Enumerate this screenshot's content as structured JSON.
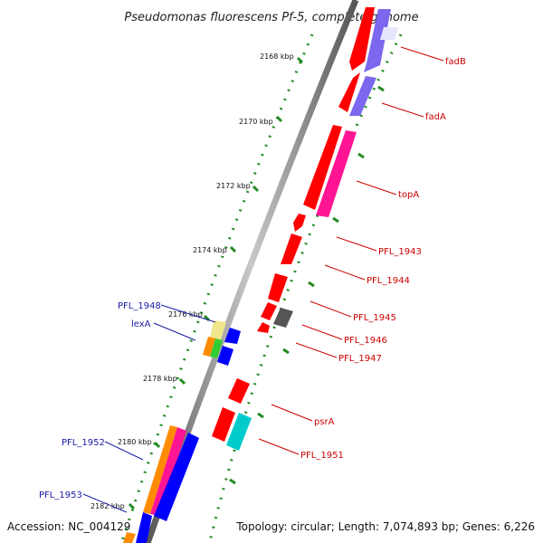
{
  "title": "Pseudomonas fluorescens Pf-5, complete genome",
  "kbp_ticks": [
    "2168 kbp",
    "2170 kbp",
    "2172 kbp",
    "2174 kbp",
    "2176 kbp",
    "2178 kbp",
    "2180 kbp",
    "2182 kbp"
  ],
  "gene_labels_right": [
    "fadB",
    "fadA",
    "topA",
    "PFL_1943",
    "PFL_1944",
    "PFL_1945",
    "PFL_1946",
    "PFL_1947",
    "psrA",
    "PFL_1951"
  ],
  "gene_labels_left": [
    "PFL_1948",
    "lexA",
    "PFL_1952",
    "PFL_1953"
  ],
  "footer": {
    "accession": "Accession: NC_004129",
    "summary": "Topology: circular; Length: 7,074,893 bp; Genes: 6,226"
  },
  "colors": {
    "cds": "#ff0000",
    "backbone": "#888888",
    "tick_dots": "#228b22",
    "label_right": "#cc0000",
    "label_left": "#1a1aa6",
    "blue": "#0000ff",
    "purple": "#7b68ee",
    "pink": "#ff1493",
    "orange": "#ff8c00",
    "green": "#32cd32",
    "khaki": "#f0e68c",
    "cyan": "#00cccc",
    "gray": "#555555"
  }
}
